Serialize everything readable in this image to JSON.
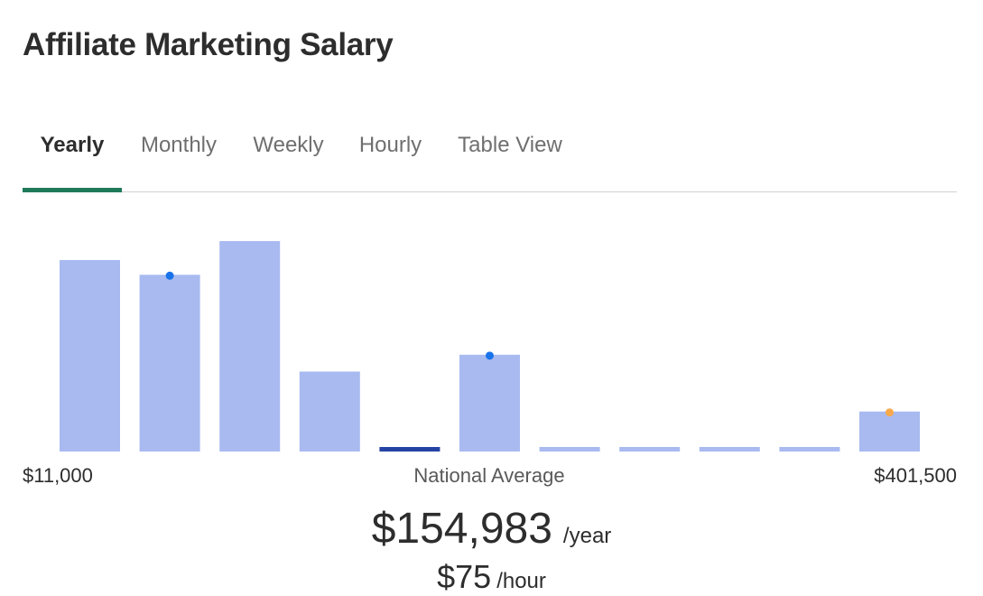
{
  "title": "Affiliate Marketing Salary",
  "tabs": [
    {
      "label": "Yearly",
      "active": true
    },
    {
      "label": "Monthly",
      "active": false
    },
    {
      "label": "Weekly",
      "active": false
    },
    {
      "label": "Hourly",
      "active": false
    },
    {
      "label": "Table View",
      "active": false
    }
  ],
  "chart_data": {
    "type": "bar",
    "values": [
      0.91,
      0.84,
      1.0,
      0.38,
      0.02,
      0.46,
      0.02,
      0.02,
      0.02,
      0.02,
      0.19
    ],
    "highlight_index": 4,
    "markers": [
      {
        "index": 1,
        "color": "#1a73e8"
      },
      {
        "index": 5,
        "color": "#1a73e8"
      },
      {
        "index": 10,
        "color": "#f7a94b"
      }
    ],
    "bar_color": "#a8baf0",
    "highlight_color": "#2443a3",
    "min_label": "$11,000",
    "max_label": "$401,500",
    "center_label": "National Average"
  },
  "salary": {
    "yearly_value": "$154,983",
    "yearly_unit": "/year",
    "hourly_value": "$75",
    "hourly_unit": "/hour"
  }
}
